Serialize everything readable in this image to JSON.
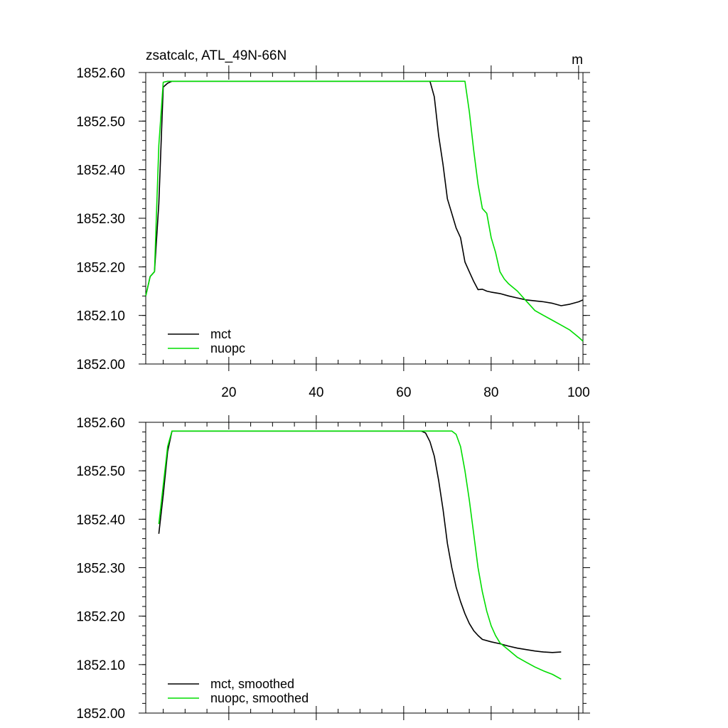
{
  "chart_data": [
    {
      "type": "line",
      "title": "zsatcalc, ATL_49N-66N",
      "units": "m",
      "xlim": [
        1,
        101
      ],
      "ylim": [
        1852.0,
        1852.6
      ],
      "x_ticks": [
        20,
        40,
        60,
        80,
        100
      ],
      "x_tick_labels": [
        "20",
        "40",
        "60",
        "80",
        "100"
      ],
      "y_ticks": [
        1852.0,
        1852.1,
        1852.2,
        1852.3,
        1852.4,
        1852.5,
        1852.6
      ],
      "y_tick_labels": [
        "1852.00",
        "1852.10",
        "1852.20",
        "1852.30",
        "1852.40",
        "1852.50",
        "1852.60"
      ],
      "legend_position": "bottom-left",
      "series": [
        {
          "name": "mct",
          "color": "#000000",
          "points": [
            [
              1,
              1852.14
            ],
            [
              2,
              1852.18
            ],
            [
              3,
              1852.19
            ],
            [
              4,
              1852.33
            ],
            [
              5,
              1852.57
            ],
            [
              6,
              1852.578
            ],
            [
              7,
              1852.582
            ],
            [
              8,
              1852.582
            ],
            [
              20,
              1852.582
            ],
            [
              40,
              1852.582
            ],
            [
              66,
              1852.582
            ],
            [
              67,
              1852.55
            ],
            [
              68,
              1852.47
            ],
            [
              69,
              1852.41
            ],
            [
              70,
              1852.34
            ],
            [
              71,
              1852.31
            ],
            [
              72,
              1852.28
            ],
            [
              73,
              1852.26
            ],
            [
              74,
              1852.21
            ],
            [
              75,
              1852.19
            ],
            [
              76,
              1852.17
            ],
            [
              77,
              1852.153
            ],
            [
              78,
              1852.154
            ],
            [
              79,
              1852.15
            ],
            [
              80,
              1852.148
            ],
            [
              82,
              1852.145
            ],
            [
              84,
              1852.14
            ],
            [
              86,
              1852.136
            ],
            [
              88,
              1852.132
            ],
            [
              90,
              1852.13
            ],
            [
              92,
              1852.128
            ],
            [
              94,
              1852.125
            ],
            [
              96,
              1852.12
            ],
            [
              98,
              1852.123
            ],
            [
              100,
              1852.128
            ],
            [
              101,
              1852.132
            ]
          ]
        },
        {
          "name": "nuopc",
          "color": "#00dd00",
          "points": [
            [
              1,
              1852.14
            ],
            [
              2,
              1852.18
            ],
            [
              3,
              1852.19
            ],
            [
              4,
              1852.45
            ],
            [
              5,
              1852.58
            ],
            [
              6,
              1852.582
            ],
            [
              8,
              1852.582
            ],
            [
              20,
              1852.582
            ],
            [
              40,
              1852.582
            ],
            [
              74,
              1852.582
            ],
            [
              75,
              1852.52
            ],
            [
              76,
              1852.44
            ],
            [
              77,
              1852.37
            ],
            [
              78,
              1852.32
            ],
            [
              79,
              1852.31
            ],
            [
              80,
              1852.26
            ],
            [
              81,
              1852.23
            ],
            [
              82,
              1852.19
            ],
            [
              83,
              1852.175
            ],
            [
              84,
              1852.165
            ],
            [
              86,
              1852.15
            ],
            [
              88,
              1852.13
            ],
            [
              90,
              1852.11
            ],
            [
              92,
              1852.1
            ],
            [
              94,
              1852.09
            ],
            [
              96,
              1852.08
            ],
            [
              98,
              1852.07
            ],
            [
              100,
              1852.055
            ],
            [
              101,
              1852.047
            ]
          ]
        }
      ]
    },
    {
      "type": "line",
      "title": "",
      "xlim": [
        1,
        101
      ],
      "ylim": [
        1852.0,
        1852.6
      ],
      "x_ticks": [
        20,
        40,
        60,
        80,
        100
      ],
      "x_tick_labels": [],
      "y_ticks": [
        1852.0,
        1852.1,
        1852.2,
        1852.3,
        1852.4,
        1852.5,
        1852.6
      ],
      "y_tick_labels": [
        "1852.00",
        "1852.10",
        "1852.20",
        "1852.30",
        "1852.40",
        "1852.50",
        "1852.60"
      ],
      "legend_position": "bottom-left",
      "series": [
        {
          "name": "mct, smoothed",
          "color": "#000000",
          "points": [
            [
              4,
              1852.37
            ],
            [
              5,
              1852.45
            ],
            [
              6,
              1852.54
            ],
            [
              7,
              1852.582
            ],
            [
              20,
              1852.582
            ],
            [
              40,
              1852.582
            ],
            [
              64,
              1852.582
            ],
            [
              65,
              1852.578
            ],
            [
              66,
              1852.56
            ],
            [
              67,
              1852.53
            ],
            [
              68,
              1852.48
            ],
            [
              69,
              1852.42
            ],
            [
              70,
              1852.35
            ],
            [
              71,
              1852.3
            ],
            [
              72,
              1852.26
            ],
            [
              73,
              1852.23
            ],
            [
              74,
              1852.205
            ],
            [
              75,
              1852.185
            ],
            [
              76,
              1852.17
            ],
            [
              77,
              1852.16
            ],
            [
              78,
              1852.152
            ],
            [
              80,
              1852.147
            ],
            [
              82,
              1852.143
            ],
            [
              84,
              1852.138
            ],
            [
              86,
              1852.134
            ],
            [
              88,
              1852.131
            ],
            [
              90,
              1852.128
            ],
            [
              92,
              1852.126
            ],
            [
              94,
              1852.125
            ],
            [
              96,
              1852.126
            ]
          ]
        },
        {
          "name": "nuopc, smoothed",
          "color": "#00dd00",
          "points": [
            [
              4,
              1852.39
            ],
            [
              5,
              1852.47
            ],
            [
              6,
              1852.55
            ],
            [
              7,
              1852.582
            ],
            [
              20,
              1852.582
            ],
            [
              40,
              1852.582
            ],
            [
              71,
              1852.582
            ],
            [
              72,
              1852.575
            ],
            [
              73,
              1852.55
            ],
            [
              74,
              1852.5
            ],
            [
              75,
              1852.44
            ],
            [
              76,
              1852.37
            ],
            [
              77,
              1852.3
            ],
            [
              78,
              1852.25
            ],
            [
              79,
              1852.21
            ],
            [
              80,
              1852.18
            ],
            [
              81,
              1852.16
            ],
            [
              82,
              1852.145
            ],
            [
              84,
              1852.13
            ],
            [
              86,
              1852.115
            ],
            [
              88,
              1852.105
            ],
            [
              90,
              1852.095
            ],
            [
              92,
              1852.087
            ],
            [
              94,
              1852.08
            ],
            [
              96,
              1852.07
            ]
          ]
        }
      ]
    }
  ]
}
